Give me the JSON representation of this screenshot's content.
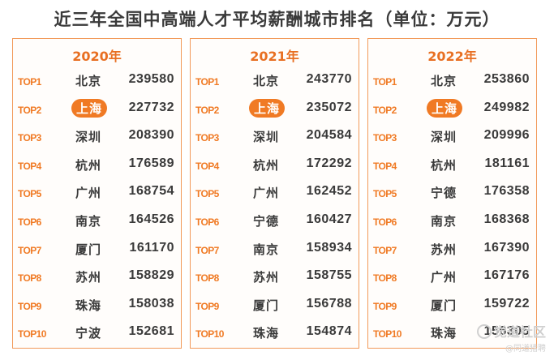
{
  "title": "近三年全国中高端人才平均薪酬城市排名（单位：万元）",
  "colors": {
    "accent": "#f07a24",
    "border": "#f29a5a",
    "text": "#3a3a3a",
    "highlight_text": "#ffffff"
  },
  "watermark": {
    "logo": "觉道社区",
    "sub": "@同道猎聘"
  },
  "chart_data": {
    "type": "table",
    "title": "近三年全国中高端人才平均薪酬城市排名（单位：万元）",
    "highlight_city": "上海",
    "panels": [
      {
        "year": "2020年",
        "rows": [
          {
            "rank": "TOP1",
            "city": "北京",
            "value": 239580
          },
          {
            "rank": "TOP2",
            "city": "上海",
            "value": 227732
          },
          {
            "rank": "TOP3",
            "city": "深圳",
            "value": 208390
          },
          {
            "rank": "TOP4",
            "city": "杭州",
            "value": 176589
          },
          {
            "rank": "TOP5",
            "city": "广州",
            "value": 168754
          },
          {
            "rank": "TOP6",
            "city": "南京",
            "value": 164526
          },
          {
            "rank": "TOP7",
            "city": "厦门",
            "value": 161170
          },
          {
            "rank": "TOP8",
            "city": "苏州",
            "value": 158829
          },
          {
            "rank": "TOP9",
            "city": "珠海",
            "value": 158038
          },
          {
            "rank": "TOP10",
            "city": "宁波",
            "value": 152681
          }
        ]
      },
      {
        "year": "2021年",
        "rows": [
          {
            "rank": "TOP1",
            "city": "北京",
            "value": 243770
          },
          {
            "rank": "TOP2",
            "city": "上海",
            "value": 235072
          },
          {
            "rank": "TOP3",
            "city": "深圳",
            "value": 204584
          },
          {
            "rank": "TOP4",
            "city": "杭州",
            "value": 172292
          },
          {
            "rank": "TOP5",
            "city": "广州",
            "value": 162452
          },
          {
            "rank": "TOP6",
            "city": "宁德",
            "value": 160427
          },
          {
            "rank": "TOP7",
            "city": "南京",
            "value": 158934
          },
          {
            "rank": "TOP8",
            "city": "苏州",
            "value": 158755
          },
          {
            "rank": "TOP9",
            "city": "厦门",
            "value": 156788
          },
          {
            "rank": "TOP10",
            "city": "珠海",
            "value": 154874
          }
        ]
      },
      {
        "year": "2022年",
        "rows": [
          {
            "rank": "TOP1",
            "city": "北京",
            "value": 253860
          },
          {
            "rank": "TOP2",
            "city": "上海",
            "value": 249982
          },
          {
            "rank": "TOP3",
            "city": "深圳",
            "value": 209996
          },
          {
            "rank": "TOP4",
            "city": "杭州",
            "value": 181161
          },
          {
            "rank": "TOP5",
            "city": "宁德",
            "value": 176358
          },
          {
            "rank": "TOP6",
            "city": "南京",
            "value": 168368
          },
          {
            "rank": "TOP7",
            "city": "苏州",
            "value": 167390
          },
          {
            "rank": "TOP8",
            "city": "广州",
            "value": 167176
          },
          {
            "rank": "TOP9",
            "city": "厦门",
            "value": 159722
          },
          {
            "rank": "TOP10",
            "city": "珠海",
            "value": 156305
          }
        ]
      }
    ]
  }
}
